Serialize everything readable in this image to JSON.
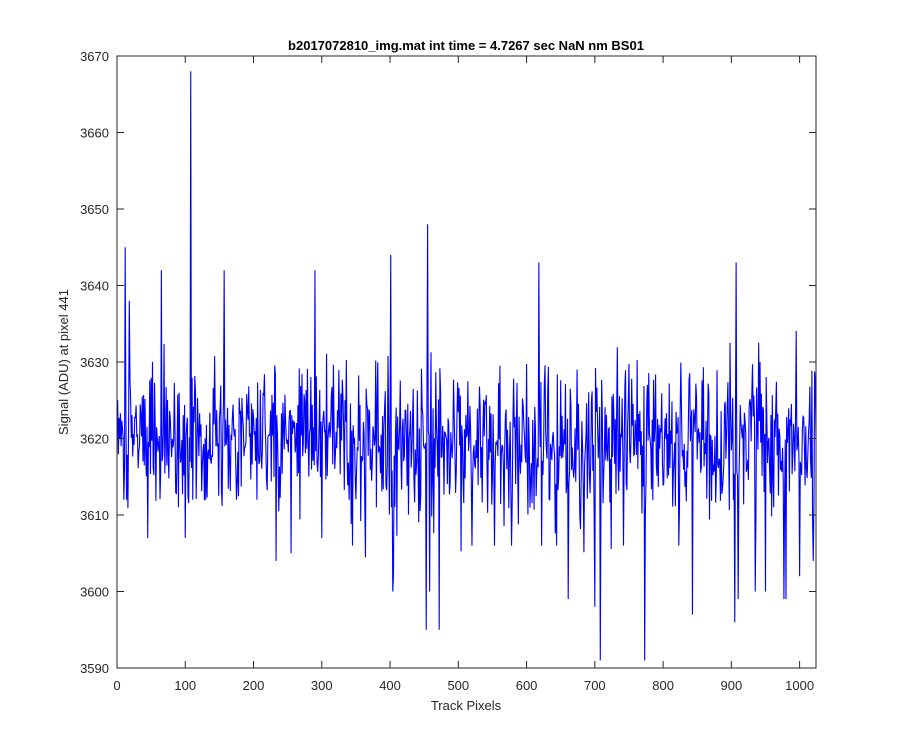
{
  "chart_data": {
    "type": "line",
    "title": "b2017072810_img.mat int time = 4.7267 sec  NaN nm BS01",
    "xlabel": "Track Pixels",
    "ylabel": "Signal (ADU) at pixel 441",
    "xlim": [
      0,
      1024
    ],
    "ylim": [
      3590,
      3670
    ],
    "xticks": [
      0,
      100,
      200,
      300,
      400,
      500,
      600,
      700,
      800,
      900,
      1000
    ],
    "yticks": [
      3590,
      3600,
      3610,
      3620,
      3630,
      3640,
      3650,
      3660,
      3670
    ],
    "grid": false,
    "line_color": "#0000ff",
    "series": [
      {
        "x_start": 1,
        "x_step": 1,
        "noise_baseline": 3620,
        "noise_amplitude": 7,
        "values_at": [
          [
            1,
            3625
          ],
          [
            10,
            3612
          ],
          [
            12,
            3645
          ],
          [
            14,
            3612
          ],
          [
            18,
            3638
          ],
          [
            45,
            3607
          ],
          [
            65,
            3642
          ],
          [
            90,
            3611
          ],
          [
            100,
            3607
          ],
          [
            108,
            3668
          ],
          [
            111,
            3612
          ],
          [
            130,
            3612
          ],
          [
            157,
            3642
          ],
          [
            175,
            3612
          ],
          [
            205,
            3612
          ],
          [
            233,
            3604
          ],
          [
            255,
            3605
          ],
          [
            290,
            3642
          ],
          [
            300,
            3607
          ],
          [
            340,
            3612
          ],
          [
            345,
            3606
          ],
          [
            380,
            3611
          ],
          [
            401,
            3644
          ],
          [
            404,
            3600
          ],
          [
            405,
            3602
          ],
          [
            453,
            3595
          ],
          [
            455,
            3648
          ],
          [
            458,
            3600
          ],
          [
            472,
            3595
          ],
          [
            520,
            3606
          ],
          [
            553,
            3606
          ],
          [
            578,
            3606
          ],
          [
            618,
            3643
          ],
          [
            622,
            3606
          ],
          [
            644,
            3606
          ],
          [
            661,
            3599
          ],
          [
            700,
            3598
          ],
          [
            708,
            3591
          ],
          [
            742,
            3606
          ],
          [
            773,
            3591
          ],
          [
            823,
            3606
          ],
          [
            843,
            3597
          ],
          [
            905,
            3596
          ],
          [
            907,
            3643
          ],
          [
            910,
            3599
          ],
          [
            935,
            3600
          ],
          [
            950,
            3600
          ],
          [
            962,
            3611
          ],
          [
            977,
            3599
          ],
          [
            980,
            3599
          ],
          [
            1000,
            3602
          ],
          [
            1020,
            3604
          ],
          [
            1024,
            3620
          ]
        ]
      }
    ]
  }
}
